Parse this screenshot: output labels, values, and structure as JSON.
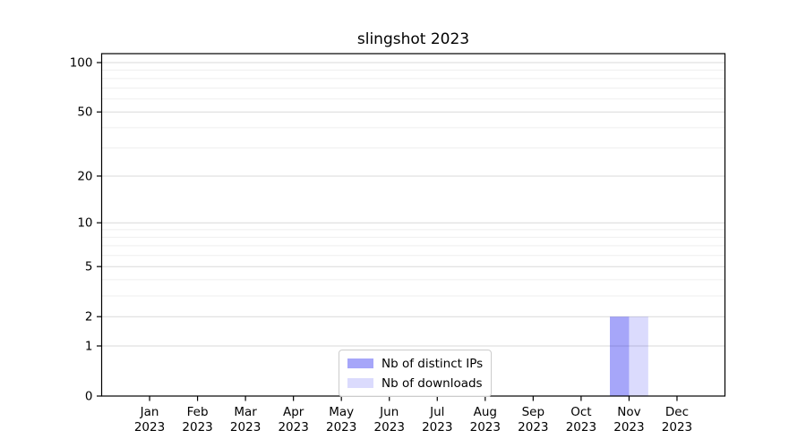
{
  "figure": {
    "background": "#ffffff"
  },
  "chart_data": {
    "type": "bar",
    "title": "slingshot 2023",
    "categories": [
      "Jan",
      "Feb",
      "Mar",
      "Apr",
      "May",
      "Jun",
      "Jul",
      "Aug",
      "Sep",
      "Oct",
      "Nov",
      "Dec"
    ],
    "tick_year": "2023",
    "series": [
      {
        "name": "Nb of distinct IPs",
        "color": "rgba(0,0,238,0.35)",
        "values": [
          0,
          0,
          0,
          0,
          0,
          0,
          0,
          0,
          0,
          0,
          2,
          0
        ]
      },
      {
        "name": "Nb of downloads",
        "color": "rgba(0,0,238,0.14)",
        "values": [
          0,
          0,
          0,
          0,
          0,
          0,
          0,
          0,
          0,
          0,
          2,
          0
        ]
      }
    ],
    "yscale": "log1p",
    "yticks": [
      0,
      1,
      2,
      5,
      10,
      20,
      50,
      100
    ],
    "minor_gridlines": [
      3,
      4,
      6,
      7,
      8,
      9,
      30,
      40,
      60,
      70,
      80,
      90
    ],
    "ylim": [
      0,
      112
    ],
    "xlabel": "",
    "ylabel": "",
    "grid": true,
    "legend": {
      "position": "lower center"
    }
  },
  "colors": {
    "major_grid": "#d9d9d9",
    "minor_grid": "#efefef",
    "spine": "#000000",
    "tick": "#000000",
    "text": "#000000",
    "legend_border": "#cccccc"
  }
}
